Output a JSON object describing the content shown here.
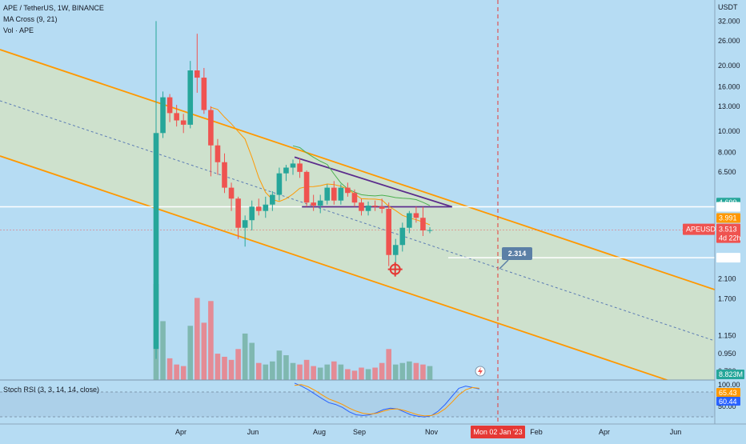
{
  "header": {
    "symbol_line": "APE / TetherUS, 1W, BINANCE",
    "ma_label": "MA Cross (9, 21)",
    "vol_label": "Vol · APE"
  },
  "rsi_label": "Stoch RSI (3, 3, 14, 14, close)",
  "currency_label": "USDT",
  "colors": {
    "background": "#b6dcf3",
    "bull": "#26a69a",
    "bear": "#ef5350",
    "channel": "#ff9800",
    "channel_fill": "#d6e3c0",
    "trend_midline": "#5b7bb4",
    "ma_fast": "#ff9800",
    "ma_slow": "#4caf50",
    "pattern_line": "#5b2c8c",
    "rsi_k": "#2962ff",
    "rsi_d": "#ff9800",
    "cursor_line": "#e53935",
    "target_marker": "#e53935",
    "target_box": "#5b7fa6",
    "volume_bull": "#7fb8b0",
    "volume_bear": "#e48b95"
  },
  "price_axis": {
    "labels": [
      "32.000",
      "26.000",
      "20.000",
      "16.000",
      "13.000",
      "10.000",
      "8.000",
      "6.500",
      "4.000",
      "2.100",
      "1.700",
      "1.150",
      "0.950",
      "0.790"
    ]
  },
  "price_tags": [
    {
      "label": "4.699",
      "value": 4.699,
      "color": "#26a69a",
      "text_color": "#ffffff"
    },
    {
      "label": "4.492",
      "value": 4.492,
      "color": "#ffffff",
      "text_color": "#131722"
    },
    {
      "label": "3.991",
      "value": 3.991,
      "color": "#ff9800",
      "text_color": "#ffffff"
    },
    {
      "label": "2.622",
      "value": 2.622,
      "color": "#ffffff",
      "text_color": "#131722"
    }
  ],
  "current_price": {
    "symbol": "APEUSDT",
    "price": "3.513",
    "countdown": "4d 22h",
    "value": 3.513,
    "color": "#ef5350"
  },
  "volume_tag": {
    "label": "8.823M",
    "color": "#26a69a"
  },
  "rsi_axis": {
    "labels": [
      "100.00",
      "50.00"
    ]
  },
  "rsi_tags": [
    {
      "label": "65.43",
      "color": "#ff9800"
    },
    {
      "label": "60.44",
      "color": "#2962ff"
    }
  ],
  "time_axis": {
    "labels": [
      {
        "text": "Apr",
        "week": 3
      },
      {
        "text": "Jun",
        "week": 12
      },
      {
        "text": "Aug",
        "week": 21
      },
      {
        "text": "Sep",
        "week": 25
      },
      {
        "text": "Nov",
        "week": 34
      },
      {
        "text": "Feb",
        "week": 48
      },
      {
        "text": "Apr",
        "week": 57
      },
      {
        "text": "Jun",
        "week": 66
      }
    ],
    "cursor_label": "Mon 02 Jan '23",
    "cursor_week": 43
  },
  "target": {
    "label": "2.314",
    "value": 2.314
  },
  "chart_data": {
    "type": "candlestick",
    "symbol": "APE / TetherUS",
    "interval": "1W",
    "exchange": "BINANCE",
    "y_scale": "log",
    "ylim": [
      0.72,
      40
    ],
    "candles": [
      {
        "o": 1.0,
        "h": 32.0,
        "l": 0.9,
        "c": 9.8,
        "v": 6.2
      },
      {
        "o": 9.8,
        "h": 15.2,
        "l": 9.3,
        "c": 14.3,
        "v": 3.8
      },
      {
        "o": 14.3,
        "h": 14.8,
        "l": 11.0,
        "c": 12.1,
        "v": 1.4
      },
      {
        "o": 12.1,
        "h": 13.2,
        "l": 10.5,
        "c": 11.2,
        "v": 1.0
      },
      {
        "o": 11.2,
        "h": 12.0,
        "l": 9.8,
        "c": 10.7,
        "v": 0.9
      },
      {
        "o": 10.7,
        "h": 21.0,
        "l": 10.3,
        "c": 19.0,
        "v": 3.5
      },
      {
        "o": 19.0,
        "h": 28.0,
        "l": 15.0,
        "c": 17.6,
        "v": 5.3
      },
      {
        "o": 17.6,
        "h": 19.5,
        "l": 12.0,
        "c": 12.5,
        "v": 3.7
      },
      {
        "o": 12.5,
        "h": 13.0,
        "l": 6.2,
        "c": 8.6,
        "v": 5.1
      },
      {
        "o": 8.6,
        "h": 9.2,
        "l": 6.3,
        "c": 7.2,
        "v": 1.7
      },
      {
        "o": 7.2,
        "h": 7.9,
        "l": 5.2,
        "c": 5.5,
        "v": 1.5
      },
      {
        "o": 5.5,
        "h": 5.8,
        "l": 4.3,
        "c": 4.9,
        "v": 1.3
      },
      {
        "o": 4.9,
        "h": 5.0,
        "l": 3.2,
        "c": 3.6,
        "v": 2.0
      },
      {
        "o": 3.6,
        "h": 4.1,
        "l": 2.95,
        "c": 3.9,
        "v": 3.0
      },
      {
        "o": 3.9,
        "h": 4.8,
        "l": 3.5,
        "c": 4.5,
        "v": 2.4
      },
      {
        "o": 4.5,
        "h": 4.9,
        "l": 4.1,
        "c": 4.3,
        "v": 1.1
      },
      {
        "o": 4.3,
        "h": 5.0,
        "l": 4.0,
        "c": 4.6,
        "v": 1.0
      },
      {
        "o": 4.6,
        "h": 5.3,
        "l": 4.3,
        "c": 5.1,
        "v": 1.2
      },
      {
        "o": 5.1,
        "h": 6.8,
        "l": 4.8,
        "c": 6.4,
        "v": 1.9
      },
      {
        "o": 6.4,
        "h": 7.0,
        "l": 5.9,
        "c": 6.8,
        "v": 1.6
      },
      {
        "o": 6.8,
        "h": 7.4,
        "l": 6.3,
        "c": 7.1,
        "v": 1.1
      },
      {
        "o": 7.1,
        "h": 7.5,
        "l": 6.1,
        "c": 6.5,
        "v": 1.0
      },
      {
        "o": 6.5,
        "h": 6.6,
        "l": 4.5,
        "c": 4.7,
        "v": 1.3
      },
      {
        "o": 4.7,
        "h": 5.1,
        "l": 4.3,
        "c": 4.55,
        "v": 0.9
      },
      {
        "o": 4.55,
        "h": 5.1,
        "l": 4.2,
        "c": 4.8,
        "v": 0.8
      },
      {
        "o": 4.8,
        "h": 5.7,
        "l": 4.6,
        "c": 5.5,
        "v": 1.0
      },
      {
        "o": 5.5,
        "h": 5.9,
        "l": 4.6,
        "c": 4.8,
        "v": 1.2
      },
      {
        "o": 4.8,
        "h": 5.7,
        "l": 4.6,
        "c": 5.5,
        "v": 1.0
      },
      {
        "o": 5.5,
        "h": 5.8,
        "l": 5.0,
        "c": 5.2,
        "v": 0.7
      },
      {
        "o": 5.2,
        "h": 5.4,
        "l": 4.5,
        "c": 4.7,
        "v": 0.6
      },
      {
        "o": 4.7,
        "h": 4.9,
        "l": 4.1,
        "c": 4.3,
        "v": 0.8
      },
      {
        "o": 4.3,
        "h": 4.75,
        "l": 4.1,
        "c": 4.55,
        "v": 0.7
      },
      {
        "o": 4.55,
        "h": 4.8,
        "l": 4.3,
        "c": 4.5,
        "v": 0.8
      },
      {
        "o": 4.5,
        "h": 4.9,
        "l": 4.2,
        "c": 4.4,
        "v": 1.1
      },
      {
        "o": 4.4,
        "h": 4.7,
        "l": 2.4,
        "c": 2.7,
        "v": 2.0
      },
      {
        "o": 2.7,
        "h": 3.2,
        "l": 2.5,
        "c": 3.0,
        "v": 1.0
      },
      {
        "o": 3.0,
        "h": 3.8,
        "l": 2.8,
        "c": 3.6,
        "v": 1.1
      },
      {
        "o": 3.6,
        "h": 4.3,
        "l": 3.4,
        "c": 4.2,
        "v": 1.2
      },
      {
        "o": 4.2,
        "h": 4.5,
        "l": 3.8,
        "c": 4.0,
        "v": 1.1
      },
      {
        "o": 4.0,
        "h": 4.49,
        "l": 3.3,
        "c": 3.5,
        "v": 1.0
      },
      {
        "o": 3.5,
        "h": 3.62,
        "l": 3.4,
        "c": 3.513,
        "v": 0.9
      }
    ],
    "ma_fast_period": 9,
    "ma_slow_period": 21,
    "rsi_k": [
      98,
      90,
      80,
      68,
      56,
      45,
      40,
      32,
      20,
      12,
      10,
      12,
      18,
      26,
      30,
      28,
      20,
      12,
      8,
      6,
      10,
      22,
      40,
      62,
      84,
      90,
      86,
      82
    ],
    "rsi_d": [
      92,
      94,
      88,
      78,
      66,
      55,
      48,
      40,
      30,
      22,
      16,
      14,
      16,
      22,
      27,
      28,
      24,
      18,
      12,
      9,
      10,
      16,
      28,
      46,
      66,
      80,
      86,
      84
    ],
    "rsi_ylim": [
      0,
      100
    ],
    "annotations": [
      "Descending parallel channel",
      "Descending triangle with support at 4.492",
      "Target 2.314"
    ]
  }
}
